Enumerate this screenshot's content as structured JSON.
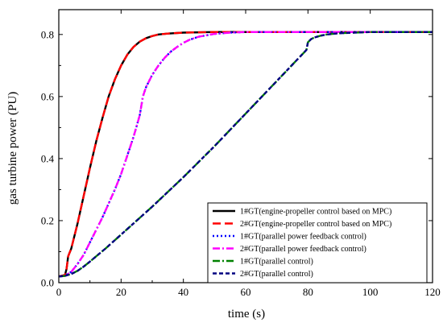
{
  "chart_data": {
    "type": "line",
    "title": "",
    "xlabel": "time (s)",
    "ylabel": "gas turbine power (PU)",
    "xlim": [
      0,
      120
    ],
    "ylim": [
      0,
      0.88
    ],
    "xticks": [
      0,
      20,
      40,
      60,
      80,
      100,
      120
    ],
    "yticks": [
      0.0,
      0.2,
      0.4,
      0.6,
      0.8
    ],
    "ytick_labels": [
      "0.0",
      "0.2",
      "0.4",
      "0.6",
      "0.8"
    ],
    "grid": false,
    "legend_position": "bottom-right",
    "series": [
      {
        "name": "1#GT(engine-propeller control based on MPC)",
        "color": "#000000",
        "dash": "solid",
        "x": [
          0,
          2,
          2.5,
          3,
          4,
          6,
          8,
          10,
          12,
          14,
          16,
          18,
          20,
          22,
          24,
          26,
          28,
          30,
          32,
          35,
          40,
          45,
          50,
          60,
          80,
          120
        ],
        "y": [
          0.02,
          0.025,
          0.045,
          0.085,
          0.11,
          0.19,
          0.28,
          0.37,
          0.455,
          0.53,
          0.6,
          0.655,
          0.7,
          0.735,
          0.76,
          0.777,
          0.788,
          0.795,
          0.8,
          0.803,
          0.806,
          0.807,
          0.808,
          0.808,
          0.808,
          0.808
        ]
      },
      {
        "name": "2#GT(engine-propeller control based on MPC)",
        "color": "#ff0000",
        "dash": "long-dash",
        "x": [
          0,
          2,
          2.5,
          3,
          4,
          6,
          8,
          10,
          12,
          14,
          16,
          18,
          20,
          22,
          24,
          26,
          28,
          30,
          32,
          35,
          40,
          45,
          50,
          60,
          80,
          120
        ],
        "y": [
          0.02,
          0.025,
          0.045,
          0.085,
          0.11,
          0.19,
          0.28,
          0.37,
          0.455,
          0.53,
          0.6,
          0.655,
          0.7,
          0.735,
          0.76,
          0.777,
          0.788,
          0.795,
          0.8,
          0.803,
          0.806,
          0.807,
          0.808,
          0.808,
          0.808,
          0.808
        ]
      },
      {
        "name": "1#GT(parallel power feedback control)",
        "color": "#0000ff",
        "dash": "dot",
        "x": [
          0,
          2,
          4,
          6,
          8,
          10,
          12,
          14,
          16,
          18,
          20,
          22,
          24,
          26,
          27,
          28,
          30,
          32,
          34,
          36,
          38,
          40,
          42,
          45,
          50,
          55,
          60,
          80,
          120
        ],
        "y": [
          0.02,
          0.022,
          0.035,
          0.06,
          0.09,
          0.13,
          0.17,
          0.21,
          0.255,
          0.3,
          0.35,
          0.41,
          0.47,
          0.54,
          0.6,
          0.63,
          0.67,
          0.7,
          0.725,
          0.745,
          0.76,
          0.773,
          0.783,
          0.793,
          0.802,
          0.806,
          0.808,
          0.808,
          0.808
        ]
      },
      {
        "name": "2#GT(parallel power feedback control)",
        "color": "#ff00ff",
        "dash": "dash-dot",
        "x": [
          0,
          2,
          4,
          6,
          8,
          10,
          12,
          14,
          16,
          18,
          20,
          22,
          24,
          26,
          27,
          28,
          30,
          32,
          34,
          36,
          38,
          40,
          42,
          45,
          50,
          55,
          60,
          80,
          120
        ],
        "y": [
          0.02,
          0.022,
          0.035,
          0.06,
          0.09,
          0.13,
          0.17,
          0.21,
          0.255,
          0.3,
          0.35,
          0.41,
          0.47,
          0.54,
          0.6,
          0.63,
          0.67,
          0.7,
          0.725,
          0.745,
          0.76,
          0.773,
          0.783,
          0.793,
          0.802,
          0.806,
          0.808,
          0.808,
          0.808
        ]
      },
      {
        "name": "1#GT(parallel control)",
        "color": "#008000",
        "dash": "dash-dot",
        "x": [
          0,
          2,
          4,
          6,
          8,
          10,
          12,
          15,
          20,
          30,
          40,
          50,
          60,
          70,
          79.5,
          80,
          81,
          82,
          84,
          86,
          90,
          95,
          100,
          120
        ],
        "y": [
          0.02,
          0.022,
          0.028,
          0.038,
          0.052,
          0.068,
          0.085,
          0.11,
          0.155,
          0.245,
          0.34,
          0.44,
          0.545,
          0.65,
          0.75,
          0.775,
          0.785,
          0.79,
          0.796,
          0.8,
          0.804,
          0.806,
          0.808,
          0.808
        ]
      },
      {
        "name": "2#GT(parallel control)",
        "color": "#000080",
        "dash": "short-dash",
        "x": [
          0,
          2,
          4,
          6,
          8,
          10,
          12,
          15,
          20,
          30,
          40,
          50,
          60,
          70,
          79.5,
          80,
          81,
          82,
          84,
          86,
          90,
          95,
          100,
          120
        ],
        "y": [
          0.02,
          0.022,
          0.028,
          0.038,
          0.052,
          0.068,
          0.085,
          0.11,
          0.155,
          0.245,
          0.34,
          0.44,
          0.545,
          0.65,
          0.75,
          0.775,
          0.785,
          0.79,
          0.796,
          0.8,
          0.804,
          0.806,
          0.808,
          0.808
        ]
      }
    ]
  }
}
